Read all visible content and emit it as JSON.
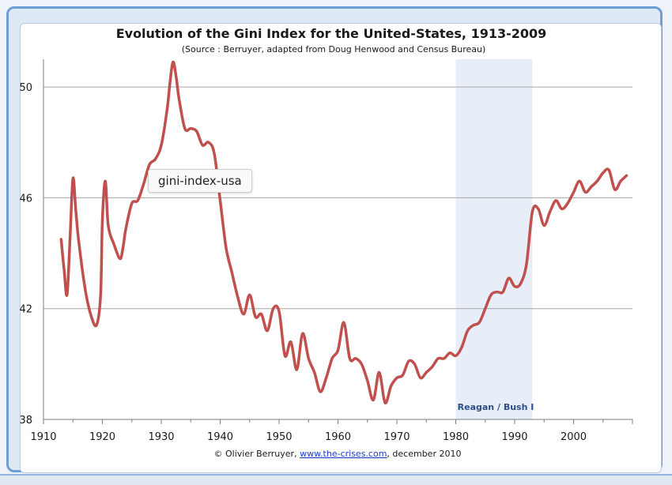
{
  "chart_data": {
    "type": "line",
    "title": "Evolution of the Gini Index for the United-States, 1913-2009",
    "subtitle": "(Source : Berruyer,  adapted from Doug Henwood and Census Bureau)",
    "xlabel": "",
    "ylabel": "",
    "xlim": [
      1910,
      2010
    ],
    "ylim": [
      38,
      51
    ],
    "x_ticks": [
      1910,
      1920,
      1930,
      1940,
      1950,
      1960,
      1970,
      1980,
      1990,
      2000
    ],
    "y_ticks": [
      38,
      42,
      46,
      50
    ],
    "grid": true,
    "line_color": "#c0504d",
    "shade_color": "#e8eef8",
    "shaded_region": {
      "x_start": 1980,
      "x_end": 1993,
      "label": "Reagan / Bush I"
    },
    "credit": {
      "prefix": "© Olivier Berruyer, ",
      "link": "www.the-crises.com",
      "suffix": ", december 2010"
    },
    "series": [
      {
        "x": [
          1913,
          1913.5,
          1914,
          1914.5,
          1915,
          1915.5,
          1916,
          1917,
          1918,
          1919,
          1919.7,
          1920,
          1920.5,
          1921,
          1922,
          1923,
          1923.5,
          1924,
          1925,
          1926,
          1927,
          1928,
          1929,
          1930,
          1931,
          1931.5,
          1932,
          1932.5,
          1933,
          1934,
          1935,
          1936,
          1937,
          1938,
          1939,
          1940,
          1941,
          1942,
          1943,
          1944,
          1945,
          1946,
          1947,
          1948,
          1949,
          1950,
          1951,
          1952,
          1953,
          1954,
          1955,
          1956,
          1957,
          1958,
          1959,
          1960,
          1961,
          1962,
          1963,
          1964,
          1965,
          1966,
          1967,
          1968,
          1969,
          1970,
          1971,
          1972,
          1973,
          1974,
          1975,
          1976,
          1977,
          1978,
          1979,
          1980,
          1981,
          1982,
          1983,
          1984,
          1985,
          1986,
          1987,
          1988,
          1989,
          1990,
          1991,
          1992,
          1993,
          1994,
          1995,
          1996,
          1997,
          1998,
          1999,
          2000,
          2001,
          2002,
          2003,
          2004,
          2005,
          2006,
          2007,
          2008,
          2009
        ],
        "y": [
          44.5,
          43.4,
          42.5,
          44.5,
          46.7,
          45.5,
          44.4,
          42.8,
          41.8,
          41.4,
          42.5,
          45.2,
          46.6,
          45.0,
          44.3,
          43.8,
          44.2,
          44.9,
          45.8,
          45.9,
          46.5,
          47.2,
          47.4,
          47.9,
          49.2,
          50.2,
          50.9,
          50.4,
          49.6,
          48.5,
          48.5,
          48.4,
          47.9,
          48.0,
          47.6,
          45.9,
          44.2,
          43.3,
          42.4,
          41.8,
          42.5,
          41.7,
          41.8,
          41.2,
          42.0,
          41.9,
          40.3,
          40.8,
          39.8,
          41.1,
          40.2,
          39.7,
          39.0,
          39.5,
          40.2,
          40.5,
          41.5,
          40.2,
          40.2,
          40.0,
          39.4,
          38.7,
          39.7,
          38.6,
          39.2,
          39.5,
          39.6,
          40.1,
          40.0,
          39.5,
          39.7,
          39.9,
          40.2,
          40.2,
          40.4,
          40.3,
          40.6,
          41.2,
          41.4,
          41.5,
          42.0,
          42.5,
          42.6,
          42.6,
          43.1,
          42.8,
          42.9,
          43.6,
          45.5,
          45.6,
          45.0,
          45.5,
          45.9,
          45.6,
          45.8,
          46.2,
          46.6,
          46.2,
          46.4,
          46.6,
          46.9,
          47.0,
          46.3,
          46.6,
          46.8
        ]
      }
    ]
  },
  "tooltip": {
    "text": "gini-index-usa"
  }
}
